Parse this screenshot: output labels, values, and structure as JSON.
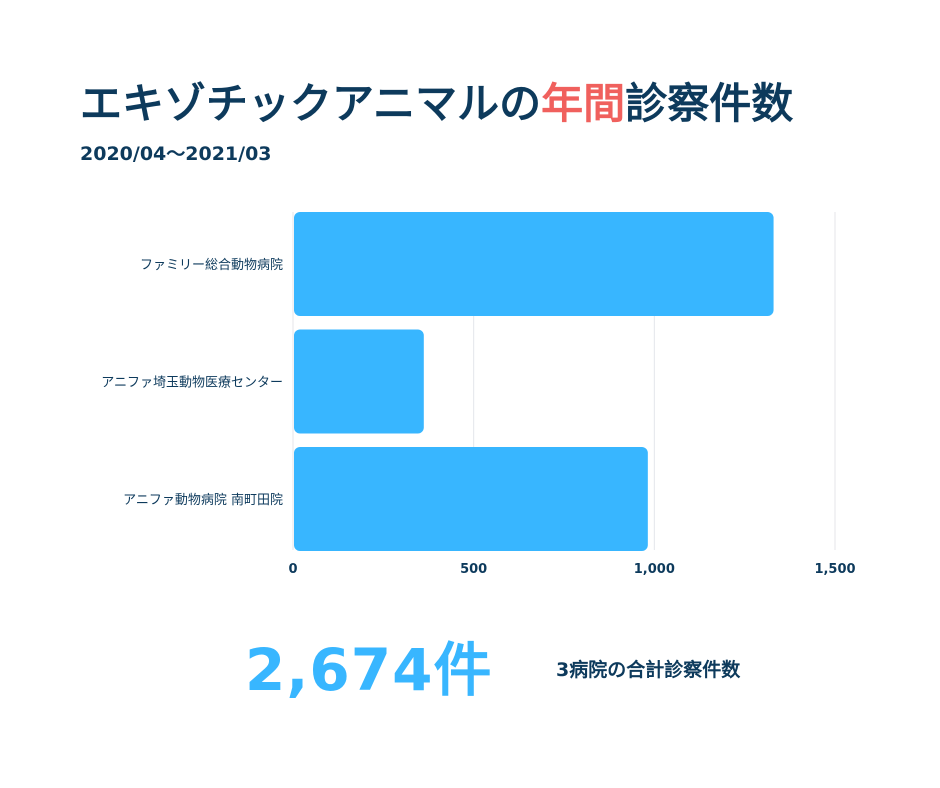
{
  "title": {
    "prefix": "エキゾチックアニマルの",
    "accent": "年間",
    "suffix": "診察件数"
  },
  "subtitle": "2020/04〜2021/03",
  "colors": {
    "bar": "#38b6ff",
    "title": "#0d3a5c",
    "accent": "#f0605d",
    "grid": "#e4e6ea"
  },
  "chart_data": {
    "type": "bar",
    "orientation": "horizontal",
    "categories": [
      "ファミリー総合動物病院",
      "アニファ埼玉動物医療センター",
      "アニファ動物病院 南町田院"
    ],
    "values": [
      1330,
      362,
      982
    ],
    "xlim": [
      0,
      1500
    ],
    "xticks": [
      0,
      500,
      1000,
      1500
    ],
    "xtick_labels": [
      "0",
      "500",
      "1,000",
      "1,500"
    ],
    "grid": true
  },
  "summary": {
    "number": "2,674件",
    "caption": "3病院の合計診察件数"
  }
}
